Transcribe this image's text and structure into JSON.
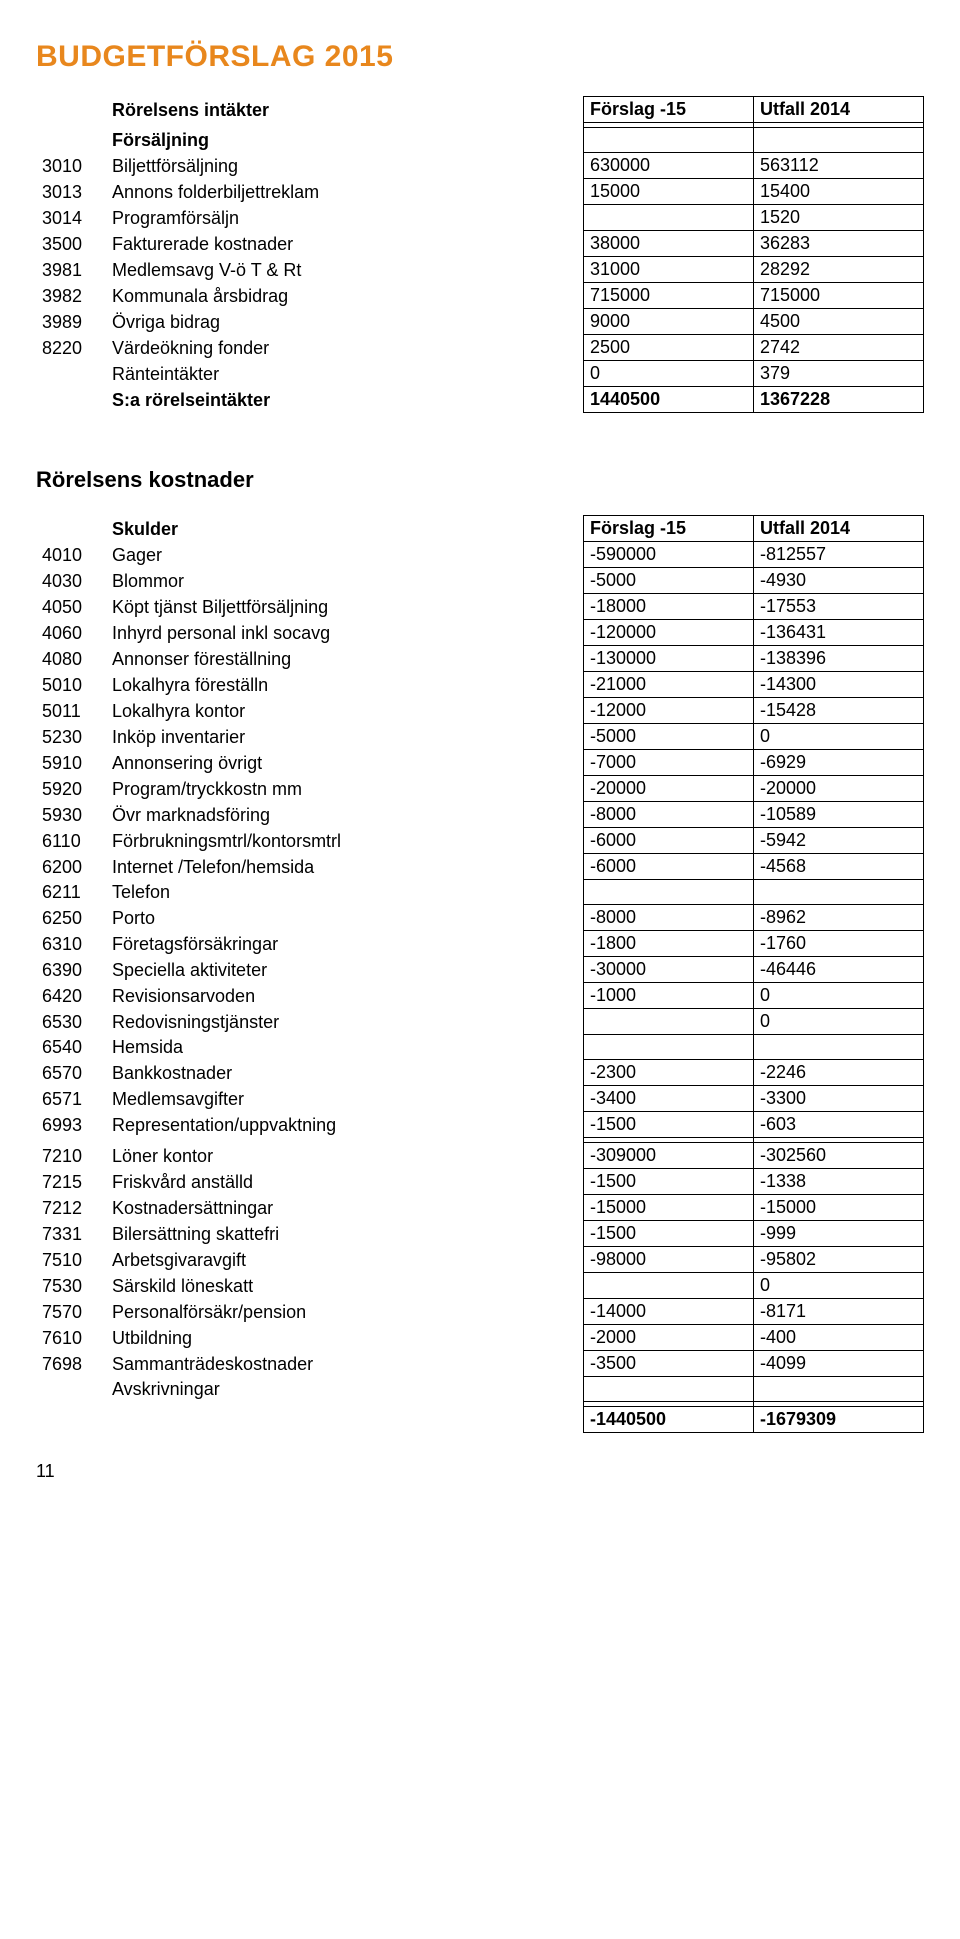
{
  "title": "BUDGETFÖRSLAG 2015",
  "page_number": "11",
  "income": {
    "header": {
      "label": "Rörelsens intäkter",
      "c1": "Förslag -15",
      "c2": "Utfall 2014"
    },
    "subheading": "Försäljning",
    "rows": [
      {
        "code": "3010",
        "label": "Biljettförsäljning",
        "c1": "630000",
        "c2": "563112"
      },
      {
        "code": "3013",
        "label": "Annons folderbiljettreklam",
        "c1": "15000",
        "c2": "15400"
      },
      {
        "code": "3014",
        "label": "Programförsäljn",
        "c1": "",
        "c2": "1520"
      },
      {
        "code": "3500",
        "label": "Fakturerade kostnader",
        "c1": "38000",
        "c2": "36283"
      },
      {
        "code": "3981",
        "label": "Medlemsavg V-ö T & Rt",
        "c1": "31000",
        "c2": "28292"
      },
      {
        "code": "3982",
        "label": "Kommunala årsbidrag",
        "c1": "715000",
        "c2": "715000"
      },
      {
        "code": "3989",
        "label": "Övriga bidrag",
        "c1": "9000",
        "c2": "4500"
      },
      {
        "code": "8220",
        "label": "Värdeökning fonder",
        "c1": "2500",
        "c2": "2742"
      },
      {
        "code": "",
        "label": "Ränteintäkter",
        "c1": "0",
        "c2": "379"
      }
    ],
    "total": {
      "label": "S:a rörelseintäkter",
      "c1": "1440500",
      "c2": "1367228"
    }
  },
  "costs": {
    "section_heading": "Rörelsens kostnader",
    "header": {
      "label": "Skulder",
      "c1": "Förslag -15",
      "c2": "Utfall 2014"
    },
    "rows_a": [
      {
        "code": "4010",
        "label": "Gager",
        "c1": "-590000",
        "c2": "-812557"
      },
      {
        "code": "4030",
        "label": "Blommor",
        "c1": "-5000",
        "c2": "-4930"
      },
      {
        "code": "4050",
        "label": "Köpt tjänst Biljettförsäljning",
        "c1": "-18000",
        "c2": "-17553"
      },
      {
        "code": "4060",
        "label": "Inhyrd personal inkl socavg",
        "c1": "-120000",
        "c2": "-136431"
      },
      {
        "code": "4080",
        "label": "Annonser föreställning",
        "c1": "-130000",
        "c2": "-138396"
      },
      {
        "code": "5010",
        "label": "Lokalhyra   föreställn",
        "c1": "-21000",
        "c2": "-14300"
      },
      {
        "code": "5011",
        "label": "Lokalhyra kontor",
        "c1": "-12000",
        "c2": "-15428"
      },
      {
        "code": "5230",
        "label": "Inköp inventarier",
        "c1": "-5000",
        "c2": "0"
      },
      {
        "code": "5910",
        "label": "Annonsering övrigt",
        "c1": "-7000",
        "c2": "-6929"
      },
      {
        "code": "5920",
        "label": "Program/tryckkostn mm",
        "c1": "-20000",
        "c2": "-20000"
      },
      {
        "code": "5930",
        "label": "Övr marknadsföring",
        "c1": "-8000",
        "c2": "-10589"
      },
      {
        "code": "6110",
        "label": "Förbrukningsmtrl/kontorsmtrl",
        "c1": "-6000",
        "c2": "-5942"
      },
      {
        "code": "6200",
        "label": "Internet /Telefon/hemsida",
        "c1": "-6000",
        "c2": "-4568"
      },
      {
        "code": "6211",
        "label": "Telefon",
        "c1": "",
        "c2": ""
      },
      {
        "code": "6250",
        "label": "Porto",
        "c1": "-8000",
        "c2": "-8962"
      },
      {
        "code": "6310",
        "label": "Företagsförsäkringar",
        "c1": "-1800",
        "c2": "-1760"
      },
      {
        "code": "6390",
        "label": "Speciella aktiviteter",
        "c1": "-30000",
        "c2": "-46446"
      },
      {
        "code": "6420",
        "label": "Revisionsarvoden",
        "c1": "-1000",
        "c2": "0"
      },
      {
        "code": "6530",
        "label": "Redovisningstjänster",
        "c1": "",
        "c2": "0"
      },
      {
        "code": "6540",
        "label": "Hemsida",
        "c1": "",
        "c2": ""
      },
      {
        "code": "6570",
        "label": "Bankkostnader",
        "c1": "-2300",
        "c2": "-2246"
      },
      {
        "code": "6571",
        "label": "Medlemsavgifter",
        "c1": "-3400",
        "c2": "-3300"
      },
      {
        "code": "6993",
        "label": "Representation/uppvaktning",
        "c1": "-1500",
        "c2": "-603"
      }
    ],
    "rows_b": [
      {
        "code": "7210",
        "label": "Löner kontor",
        "c1": "-309000",
        "c2": "-302560"
      },
      {
        "code": "7215",
        "label": "Friskvård anställd",
        "c1": "-1500",
        "c2": "-1338"
      },
      {
        "code": "7212",
        "label": "Kostnadersättningar",
        "c1": "-15000",
        "c2": "-15000"
      },
      {
        "code": "7331",
        "label": "Bilersättning skattefri",
        "c1": "-1500",
        "c2": "-999"
      },
      {
        "code": "7510",
        "label": "Arbetsgivaravgift",
        "c1": "-98000",
        "c2": "-95802"
      },
      {
        "code": "7530",
        "label": "Särskild löneskatt",
        "c1": "",
        "c2": "0"
      },
      {
        "code": "7570",
        "label": "Personalförsäkr/pension",
        "c1": "-14000",
        "c2": "-8171"
      },
      {
        "code": "7610",
        "label": "Utbildning",
        "c1": "-2000",
        "c2": "-400"
      },
      {
        "code": "7698",
        "label": "Sammanträdeskostnader",
        "c1": "-3500",
        "c2": "-4099"
      },
      {
        "code": "",
        "label": "Avskrivningar",
        "c1": "",
        "c2": ""
      }
    ],
    "total": {
      "c1": "-1440500",
      "c2": "-1679309"
    }
  }
}
